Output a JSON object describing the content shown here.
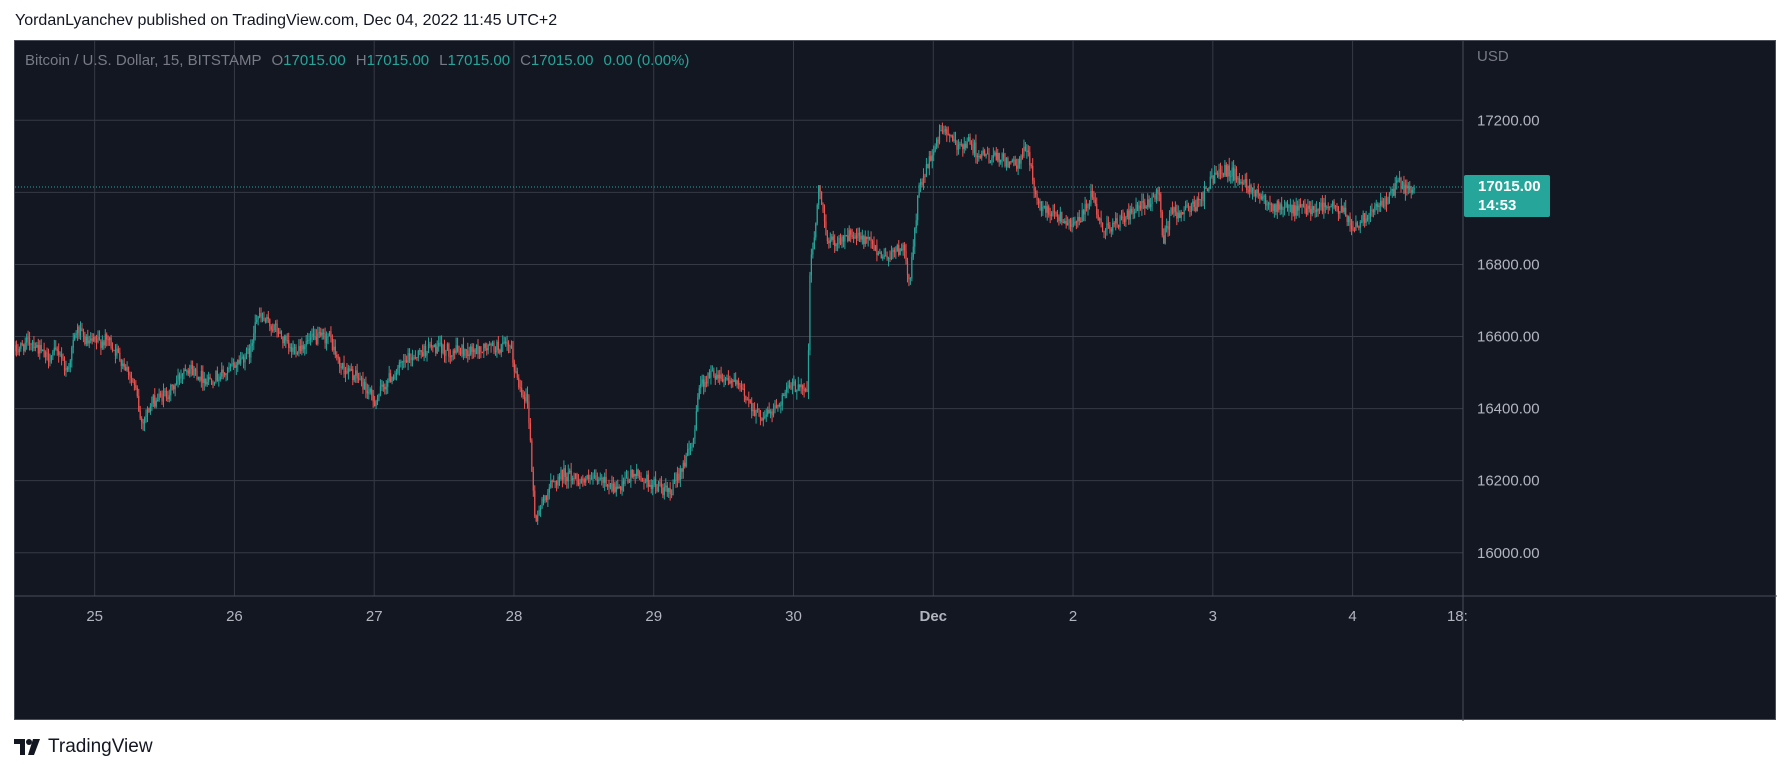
{
  "header": {
    "published_text": "YordanLyanchev published on TradingView.com, Dec 04, 2022 11:45 UTC+2"
  },
  "footer": {
    "brand_label": "TradingView"
  },
  "colors": {
    "background": "#131722",
    "grid": "#363a45",
    "up": "#26a69a",
    "down": "#ef5350",
    "axis_text": "#b2b5be",
    "muted_text": "#787b86"
  },
  "chart_data": {
    "type": "candlestick",
    "legend": {
      "symbol": "Bitcoin / U.S. Dollar, 15, BITSTAMP",
      "o_label": "O",
      "o_value": "17015.00",
      "h_label": "H",
      "h_value": "17015.00",
      "l_label": "L",
      "l_value": "17015.00",
      "c_label": "C",
      "c_value": "17015.00",
      "change": "0.00 (0.00%)"
    },
    "currency_label": "USD",
    "y_ticks": [
      "17200.00",
      "17000.00",
      "16800.00",
      "16600.00",
      "16400.00",
      "16200.00",
      "16000.00"
    ],
    "ylim": [
      15880,
      17420
    ],
    "x_ticks": [
      "25",
      "26",
      "27",
      "28",
      "29",
      "30",
      "Dec",
      "2",
      "3",
      "4",
      "18:"
    ],
    "x_tick_days": [
      0,
      1,
      2,
      3,
      4,
      5,
      6,
      7,
      8,
      9,
      9.75
    ],
    "xlim": [
      -0.57,
      9.79
    ],
    "current_price": "17015.00",
    "countdown": "14:53",
    "bar_interval": "15",
    "path": [
      {
        "d": -0.57,
        "p": 16560
      },
      {
        "d": -0.45,
        "p": 16590
      },
      {
        "d": -0.35,
        "p": 16540
      },
      {
        "d": -0.25,
        "p": 16560
      },
      {
        "d": -0.2,
        "p": 16500
      },
      {
        "d": -0.13,
        "p": 16620
      },
      {
        "d": -0.05,
        "p": 16580
      },
      {
        "d": 0.1,
        "p": 16590
      },
      {
        "d": 0.15,
        "p": 16560
      },
      {
        "d": 0.25,
        "p": 16500
      },
      {
        "d": 0.3,
        "p": 16440
      },
      {
        "d": 0.33,
        "p": 16360
      },
      {
        "d": 0.42,
        "p": 16420
      },
      {
        "d": 0.55,
        "p": 16450
      },
      {
        "d": 0.65,
        "p": 16520
      },
      {
        "d": 0.8,
        "p": 16480
      },
      {
        "d": 0.95,
        "p": 16500
      },
      {
        "d": 1.05,
        "p": 16540
      },
      {
        "d": 1.12,
        "p": 16560
      },
      {
        "d": 1.15,
        "p": 16660
      },
      {
        "d": 1.3,
        "p": 16620
      },
      {
        "d": 1.4,
        "p": 16560
      },
      {
        "d": 1.55,
        "p": 16590
      },
      {
        "d": 1.68,
        "p": 16600
      },
      {
        "d": 1.75,
        "p": 16520
      },
      {
        "d": 1.9,
        "p": 16480
      },
      {
        "d": 2.0,
        "p": 16420
      },
      {
        "d": 2.1,
        "p": 16480
      },
      {
        "d": 2.25,
        "p": 16540
      },
      {
        "d": 2.4,
        "p": 16570
      },
      {
        "d": 2.55,
        "p": 16560
      },
      {
        "d": 2.7,
        "p": 16560
      },
      {
        "d": 2.85,
        "p": 16570
      },
      {
        "d": 2.97,
        "p": 16570
      },
      {
        "d": 3.03,
        "p": 16470
      },
      {
        "d": 3.1,
        "p": 16420
      },
      {
        "d": 3.15,
        "p": 16090
      },
      {
        "d": 3.25,
        "p": 16180
      },
      {
        "d": 3.35,
        "p": 16220
      },
      {
        "d": 3.5,
        "p": 16200
      },
      {
        "d": 3.65,
        "p": 16200
      },
      {
        "d": 3.75,
        "p": 16170
      },
      {
        "d": 3.85,
        "p": 16220
      },
      {
        "d": 3.95,
        "p": 16200
      },
      {
        "d": 4.05,
        "p": 16180
      },
      {
        "d": 4.12,
        "p": 16160
      },
      {
        "d": 4.2,
        "p": 16240
      },
      {
        "d": 4.28,
        "p": 16300
      },
      {
        "d": 4.32,
        "p": 16460
      },
      {
        "d": 4.42,
        "p": 16500
      },
      {
        "d": 4.55,
        "p": 16480
      },
      {
        "d": 4.65,
        "p": 16440
      },
      {
        "d": 4.75,
        "p": 16380
      },
      {
        "d": 4.85,
        "p": 16390
      },
      {
        "d": 4.95,
        "p": 16450
      },
      {
        "d": 5.05,
        "p": 16470
      },
      {
        "d": 5.1,
        "p": 16440
      },
      {
        "d": 5.12,
        "p": 16800
      },
      {
        "d": 5.15,
        "p": 16880
      },
      {
        "d": 5.18,
        "p": 17010
      },
      {
        "d": 5.25,
        "p": 16860
      },
      {
        "d": 5.4,
        "p": 16880
      },
      {
        "d": 5.55,
        "p": 16860
      },
      {
        "d": 5.65,
        "p": 16820
      },
      {
        "d": 5.78,
        "p": 16850
      },
      {
        "d": 5.83,
        "p": 16750
      },
      {
        "d": 5.87,
        "p": 16900
      },
      {
        "d": 5.9,
        "p": 17020
      },
      {
        "d": 5.95,
        "p": 17060
      },
      {
        "d": 6.02,
        "p": 17140
      },
      {
        "d": 6.08,
        "p": 17180
      },
      {
        "d": 6.15,
        "p": 17130
      },
      {
        "d": 6.25,
        "p": 17140
      },
      {
        "d": 6.35,
        "p": 17100
      },
      {
        "d": 6.5,
        "p": 17090
      },
      {
        "d": 6.6,
        "p": 17070
      },
      {
        "d": 6.67,
        "p": 17130
      },
      {
        "d": 6.72,
        "p": 17020
      },
      {
        "d": 6.75,
        "p": 16960
      },
      {
        "d": 6.85,
        "p": 16950
      },
      {
        "d": 6.95,
        "p": 16920
      },
      {
        "d": 7.05,
        "p": 16920
      },
      {
        "d": 7.13,
        "p": 16990
      },
      {
        "d": 7.2,
        "p": 16900
      },
      {
        "d": 7.3,
        "p": 16910
      },
      {
        "d": 7.45,
        "p": 16950
      },
      {
        "d": 7.55,
        "p": 16970
      },
      {
        "d": 7.62,
        "p": 17010
      },
      {
        "d": 7.64,
        "p": 16860
      },
      {
        "d": 7.7,
        "p": 16940
      },
      {
        "d": 7.8,
        "p": 16950
      },
      {
        "d": 7.9,
        "p": 16970
      },
      {
        "d": 7.97,
        "p": 17020
      },
      {
        "d": 8.05,
        "p": 17070
      },
      {
        "d": 8.15,
        "p": 17050
      },
      {
        "d": 8.25,
        "p": 17020
      },
      {
        "d": 8.35,
        "p": 16990
      },
      {
        "d": 8.45,
        "p": 16960
      },
      {
        "d": 8.6,
        "p": 16950
      },
      {
        "d": 8.75,
        "p": 16960
      },
      {
        "d": 8.85,
        "p": 16960
      },
      {
        "d": 8.95,
        "p": 16940
      },
      {
        "d": 9.0,
        "p": 16900
      },
      {
        "d": 9.08,
        "p": 16930
      },
      {
        "d": 9.15,
        "p": 16960
      },
      {
        "d": 9.25,
        "p": 16970
      },
      {
        "d": 9.32,
        "p": 17030
      },
      {
        "d": 9.4,
        "p": 17000
      },
      {
        "d": 9.45,
        "p": 17015
      }
    ]
  }
}
